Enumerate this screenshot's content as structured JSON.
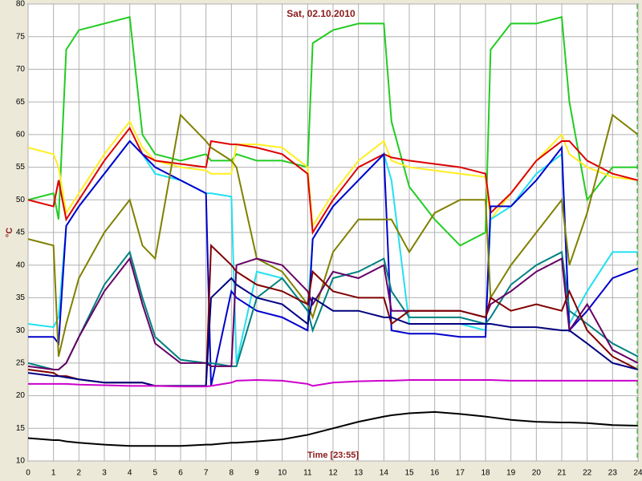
{
  "chart_data": {
    "type": "line",
    "title": "Sat, 02.10.2010",
    "x_label": "Time [23:55]",
    "y_label": "°C",
    "x": [
      0,
      1,
      1.2,
      1.5,
      2,
      3,
      4,
      4.5,
      5,
      6,
      7,
      7.2,
      8,
      8.2,
      9,
      10,
      11,
      11.2,
      12,
      13,
      14,
      14.3,
      15,
      16,
      17,
      18,
      18.2,
      19,
      20,
      21,
      21.3,
      22,
      23,
      24
    ],
    "series": [
      {
        "color": "#22cc22",
        "values": [
          50,
          51,
          47,
          73,
          76,
          77,
          78,
          60,
          57,
          56,
          57,
          56,
          56,
          57,
          56,
          56,
          55,
          74,
          76,
          77,
          77,
          62,
          52,
          47,
          43,
          45,
          73,
          77,
          77,
          78,
          65,
          50,
          55,
          55
        ]
      },
      {
        "color": "#ffee22",
        "values": [
          58,
          57,
          55,
          48,
          51,
          57,
          62,
          58,
          56,
          55,
          54.5,
          54,
          54,
          58.5,
          58.5,
          58,
          55,
          46,
          51,
          56,
          59,
          56,
          55,
          54.5,
          54,
          53.5,
          47,
          51,
          56,
          60,
          57,
          55,
          53.5,
          53
        ]
      },
      {
        "color": "#dd0000",
        "values": [
          50,
          49,
          53,
          47,
          50,
          56,
          61,
          57,
          56,
          55.5,
          55,
          59,
          58.5,
          58.5,
          58,
          57,
          54,
          45,
          50,
          55,
          57,
          56.5,
          56,
          55.5,
          55,
          54,
          48,
          51,
          56,
          59,
          59,
          56,
          54,
          53
        ]
      },
      {
        "color": "#22e0f0",
        "values": [
          31,
          30.5,
          32,
          46,
          49,
          54,
          59,
          57,
          54,
          53,
          51,
          51,
          50.5,
          25,
          39,
          38,
          33,
          44,
          49,
          53,
          57,
          53,
          31,
          31,
          31,
          30,
          47,
          49,
          54,
          57,
          31,
          36,
          42,
          42
        ]
      },
      {
        "color": "#0000cc",
        "values": [
          29,
          29,
          28,
          46,
          49,
          54,
          59,
          57,
          55,
          53,
          51,
          21.5,
          36,
          35,
          33,
          32,
          30,
          44,
          49,
          53,
          57,
          30,
          29.5,
          29.5,
          29,
          29,
          49,
          49,
          53,
          58,
          30,
          33,
          38,
          39.5
        ]
      },
      {
        "color": "#808000",
        "values": [
          44,
          43,
          26,
          31,
          38,
          45,
          50,
          43,
          41,
          63,
          59,
          58,
          56,
          55,
          41,
          39,
          34,
          32,
          42,
          47,
          47,
          47,
          42,
          48,
          50,
          50,
          35,
          40,
          45,
          50,
          40,
          48,
          63,
          60
        ]
      },
      {
        "color": "#008080",
        "values": [
          25,
          24,
          24,
          25,
          29,
          37,
          42,
          35,
          29,
          25.5,
          25,
          25,
          24.5,
          24.5,
          35,
          38,
          33,
          30,
          38,
          39,
          41,
          36,
          32,
          32,
          32,
          31,
          32,
          37,
          40,
          42,
          33,
          31,
          28,
          26
        ]
      },
      {
        "color": "#660066",
        "values": [
          24.5,
          24,
          24,
          25,
          29,
          36,
          41,
          34,
          28,
          25,
          25,
          24.5,
          24.5,
          40,
          41,
          40,
          36,
          34,
          39,
          38,
          40,
          33,
          33,
          33,
          33,
          32,
          34,
          36,
          39,
          41,
          30,
          34,
          27,
          25
        ]
      },
      {
        "color": "#800000",
        "values": [
          24,
          23.5,
          23,
          23,
          22.5,
          22,
          22,
          22,
          21.5,
          21.5,
          21.5,
          43,
          40,
          39,
          37,
          36,
          34,
          39,
          36,
          35,
          35,
          31,
          33,
          33,
          33,
          32,
          35,
          33,
          34,
          33,
          36,
          30,
          26,
          24
        ]
      },
      {
        "color": "#000080",
        "values": [
          23.5,
          23,
          23,
          22.8,
          22.5,
          22,
          22,
          22,
          21.5,
          21.5,
          21.5,
          35,
          38,
          37,
          35,
          34,
          31,
          35,
          33,
          33,
          32,
          32,
          31,
          31,
          31,
          31,
          31,
          30.5,
          30.5,
          30,
          30,
          28,
          25,
          24
        ]
      },
      {
        "color": "#cc00cc",
        "values": [
          21.8,
          21.8,
          21.8,
          21.8,
          21.7,
          21.6,
          21.5,
          21.5,
          21.5,
          21.4,
          21.4,
          21.5,
          22,
          22.3,
          22.4,
          22.3,
          21.8,
          21.5,
          22,
          22.2,
          22.3,
          22.3,
          22.4,
          22.4,
          22.4,
          22.4,
          22.4,
          22.3,
          22.3,
          22.3,
          22.3,
          22.3,
          22.3,
          22.3
        ]
      },
      {
        "color": "#000000",
        "values": [
          13.5,
          13.2,
          13.2,
          13,
          12.8,
          12.5,
          12.3,
          12.3,
          12.3,
          12.3,
          12.5,
          12.5,
          12.8,
          12.8,
          13,
          13.3,
          14,
          14.2,
          15,
          16,
          16.8,
          17,
          17.3,
          17.5,
          17.2,
          16.8,
          16.7,
          16.3,
          16,
          15.9,
          15.9,
          15.8,
          15.5,
          15.4
        ]
      }
    ],
    "xlim": [
      0,
      24
    ],
    "xticks": [
      0,
      1,
      2,
      3,
      4,
      5,
      6,
      7,
      8,
      9,
      10,
      11,
      12,
      13,
      14,
      15,
      16,
      17,
      18,
      19,
      20,
      21,
      22,
      23,
      24
    ],
    "ylim": [
      10,
      80
    ],
    "yticks": [
      10,
      15,
      20,
      25,
      30,
      35,
      40,
      45,
      50,
      55,
      60,
      65,
      70,
      75,
      80
    ],
    "grid": true
  }
}
